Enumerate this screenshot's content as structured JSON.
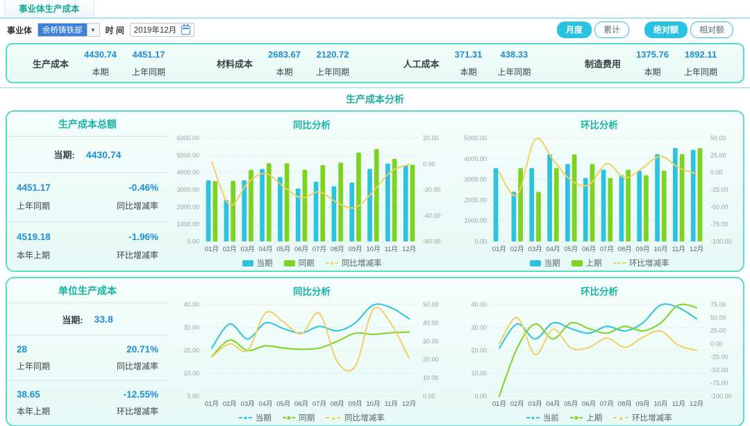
{
  "header": {
    "tab_title": "事业体生产成本"
  },
  "icons": {
    "chevron_down": "▼"
  },
  "filters": {
    "business_unit_label": "事业体",
    "business_unit_value": "余桥铸铁部",
    "time_label": "时 间",
    "time_value": "2019年12月",
    "period_buttons": [
      {
        "label": "月度",
        "active": true
      },
      {
        "label": "累计",
        "active": false
      }
    ],
    "amount_buttons": [
      {
        "label": "绝对额",
        "active": true
      },
      {
        "label": "相对额",
        "active": false
      }
    ]
  },
  "summary": {
    "items": [
      {
        "name": "生产成本",
        "current": "4430.74",
        "current_label": "本期",
        "prior": "4451.17",
        "prior_label": "上年同期"
      },
      {
        "name": "材料成本",
        "current": "2683.67",
        "current_label": "本期",
        "prior": "2120.72",
        "prior_label": "上年同期"
      },
      {
        "name": "人工成本",
        "current": "371.31",
        "current_label": "本期",
        "prior": "438.33",
        "prior_label": "上年同期"
      },
      {
        "name": "制造费用",
        "current": "1375.76",
        "current_label": "本期",
        "prior": "1892.11",
        "prior_label": "上年同期"
      }
    ]
  },
  "section_title": "生产成本分析",
  "panels": [
    {
      "stats": {
        "title": "生产成本总额",
        "current_label": "当期:",
        "current_value": "4430.74",
        "yoy_value": "4451.17",
        "yoy_rate": "-0.46%",
        "yoy_value_label": "上年同期",
        "yoy_rate_label": "同比增减率",
        "mom_value": "4519.18",
        "mom_rate": "-1.96%",
        "mom_value_label": "本年上期",
        "mom_rate_label": "环比增减率"
      }
    },
    {
      "stats": {
        "title": "单位生产成本",
        "current_label": "当期:",
        "current_value": "33.8",
        "yoy_value": "28",
        "yoy_rate": "20.71%",
        "yoy_value_label": "上年同期",
        "yoy_rate_label": "同比增减率",
        "mom_value": "38.65",
        "mom_rate": "-12.55%",
        "mom_value_label": "本年上期",
        "mom_rate_label": "环比增减率"
      }
    }
  ],
  "colors": {
    "accent_teal": "#1CAF9E",
    "accent_cyan": "#29C3E2",
    "value_blue": "#1E8FD8",
    "bar_cyan": "#2EC3DD",
    "bar_green": "#7ED321",
    "line_yellow": "#F2CF63",
    "panel_border": "#57DCC9"
  },
  "chart_data": [
    {
      "type": "bar",
      "title": "同比分析",
      "categories": [
        "01月",
        "02月",
        "03月",
        "04月",
        "05月",
        "06月",
        "07月",
        "08月",
        "09月",
        "10月",
        "11月",
        "12月"
      ],
      "left_axis": {
        "min": 0,
        "max": 6000,
        "step": 1000
      },
      "right_axis": {
        "min": -60,
        "max": 20,
        "step": 20
      },
      "grid": true,
      "legend_position": "bottom",
      "series": [
        {
          "name": "当期",
          "kind": "bar",
          "axis": "left",
          "color": "#2EC3DD",
          "values": [
            3550,
            2400,
            3550,
            4210,
            3740,
            3070,
            3470,
            3200,
            3420,
            4220,
            4519.18,
            4430.74
          ]
        },
        {
          "name": "同期",
          "kind": "bar",
          "axis": "left",
          "color": "#7ED321",
          "values": [
            3500,
            3520,
            4160,
            4540,
            4540,
            4160,
            4430,
            4580,
            5160,
            5360,
            4790,
            4451.17
          ]
        },
        {
          "name": "同比增减率",
          "kind": "line",
          "axis": "right",
          "color": "#F2CF63",
          "marker": "●",
          "values": [
            1.4,
            -31.8,
            -14.7,
            -7.3,
            -17.6,
            -26.2,
            -21.7,
            -30.1,
            -33.7,
            -21.3,
            -5.7,
            -0.46
          ]
        }
      ]
    },
    {
      "type": "bar",
      "title": "环比分析",
      "categories": [
        "01月",
        "02月",
        "03月",
        "04月",
        "05月",
        "06月",
        "07月",
        "08月",
        "09月",
        "10月",
        "11月",
        "12月"
      ],
      "left_axis": {
        "min": 0,
        "max": 5000,
        "step": 1000
      },
      "right_axis": {
        "min": -100,
        "max": 50,
        "step": 25
      },
      "grid": true,
      "legend_position": "bottom",
      "series": [
        {
          "name": "当期",
          "kind": "bar",
          "axis": "left",
          "color": "#2EC3DD",
          "values": [
            3550,
            2400,
            3550,
            4210,
            3740,
            3070,
            3470,
            3200,
            3420,
            4220,
            4519.18,
            4430.74
          ]
        },
        {
          "name": "上期",
          "kind": "bar",
          "axis": "left",
          "color": "#7ED321",
          "values": [
            null,
            3550,
            2400,
            3550,
            4210,
            3740,
            3070,
            3470,
            3200,
            3420,
            4220,
            4519.18
          ]
        },
        {
          "name": "环比增减率",
          "kind": "line",
          "axis": "right",
          "color": "#F2CF63",
          "marker": "●",
          "values": [
            0,
            -32.4,
            47.9,
            18.6,
            -11.2,
            -17.9,
            13.0,
            -7.8,
            6.9,
            23.4,
            7.1,
            -1.96
          ]
        }
      ]
    },
    {
      "type": "line",
      "title": "同比分析",
      "categories": [
        "01月",
        "02月",
        "03月",
        "04月",
        "05月",
        "06月",
        "07月",
        "08月",
        "09月",
        "10月",
        "11月",
        "12月"
      ],
      "left_axis": {
        "min": 0,
        "max": 40,
        "step": 10
      },
      "right_axis": {
        "min": 0,
        "max": 50,
        "step": 10
      },
      "grid": true,
      "legend_position": "bottom",
      "series": [
        {
          "name": "当期",
          "kind": "line",
          "axis": "left",
          "color": "#2EC3DD",
          "marker": "●",
          "values": [
            21,
            31.5,
            25,
            32,
            29.5,
            27.5,
            30.5,
            28.5,
            32,
            39.8,
            38.65,
            33.8
          ]
        },
        {
          "name": "同期",
          "kind": "line",
          "axis": "left",
          "color": "#7ED321",
          "marker": "■",
          "values": [
            17.3,
            24.5,
            20,
            22,
            21,
            20.5,
            21,
            24,
            27.5,
            27,
            27.7,
            28
          ]
        },
        {
          "name": "同比增减率",
          "kind": "line",
          "axis": "right",
          "color": "#F2CF63",
          "marker": "▲",
          "values": [
            21.4,
            28.6,
            25,
            45.5,
            40.5,
            34.1,
            45.2,
            18.8,
            16.4,
            47.4,
            39.5,
            20.71
          ]
        }
      ]
    },
    {
      "type": "line",
      "title": "环比分析",
      "categories": [
        "01月",
        "02月",
        "03月",
        "04月",
        "05月",
        "06月",
        "07月",
        "08月",
        "09月",
        "10月",
        "11月",
        "12月"
      ],
      "left_axis": {
        "min": 0,
        "max": 40,
        "step": 10
      },
      "right_axis": {
        "min": -100,
        "max": 75,
        "step": 25
      },
      "grid": true,
      "legend_position": "bottom",
      "series": [
        {
          "name": "当前",
          "kind": "line",
          "axis": "left",
          "color": "#2EC3DD",
          "marker": "●",
          "values": [
            21,
            31.5,
            25,
            32,
            29.5,
            27.5,
            30.5,
            28.5,
            32,
            39.8,
            38.65,
            33.8
          ]
        },
        {
          "name": "上期",
          "kind": "line",
          "axis": "left",
          "color": "#7ED321",
          "marker": "■",
          "values": [
            0,
            21,
            31.5,
            25,
            32,
            29.5,
            27.5,
            30.5,
            28.5,
            32,
            39.8,
            38.65
          ]
        },
        {
          "name": "环比增减率",
          "kind": "line",
          "axis": "right",
          "color": "#F2CF63",
          "marker": "▲",
          "values": [
            0,
            50,
            -20.6,
            28,
            -7.8,
            -6.8,
            10.9,
            -6.6,
            12.3,
            24.4,
            -2.9,
            -12.55
          ]
        }
      ]
    }
  ]
}
